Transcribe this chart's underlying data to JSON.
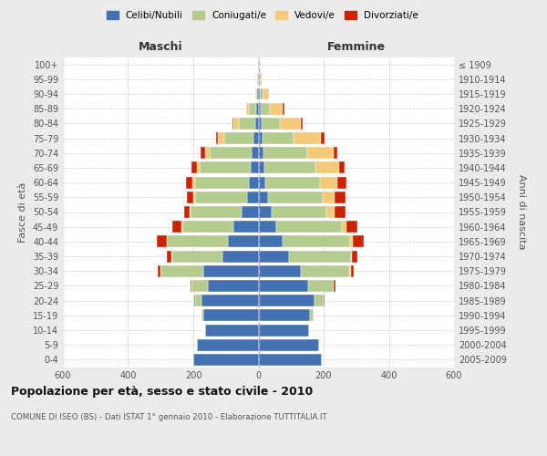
{
  "age_groups": [
    "0-4",
    "5-9",
    "10-14",
    "15-19",
    "20-24",
    "25-29",
    "30-34",
    "35-39",
    "40-44",
    "45-49",
    "50-54",
    "55-59",
    "60-64",
    "65-69",
    "70-74",
    "75-79",
    "80-84",
    "85-89",
    "90-94",
    "95-99",
    "100+"
  ],
  "birth_years": [
    "2005-2009",
    "2000-2004",
    "1995-1999",
    "1990-1994",
    "1985-1989",
    "1980-1984",
    "1975-1979",
    "1970-1974",
    "1965-1969",
    "1960-1964",
    "1955-1959",
    "1950-1954",
    "1945-1949",
    "1940-1944",
    "1935-1939",
    "1930-1934",
    "1925-1929",
    "1920-1924",
    "1915-1919",
    "1910-1914",
    "≤ 1909"
  ],
  "male": {
    "celibi": [
      200,
      190,
      165,
      170,
      175,
      155,
      170,
      110,
      95,
      78,
      52,
      35,
      30,
      25,
      20,
      15,
      10,
      8,
      3,
      2,
      1
    ],
    "coniugati": [
      0,
      0,
      0,
      5,
      20,
      50,
      130,
      155,
      185,
      155,
      155,
      160,
      165,
      155,
      130,
      90,
      50,
      20,
      5,
      2,
      0
    ],
    "vedovi": [
      0,
      0,
      0,
      0,
      0,
      0,
      0,
      1,
      1,
      2,
      3,
      5,
      8,
      10,
      15,
      20,
      18,
      10,
      2,
      0,
      0
    ],
    "divorziati": [
      0,
      0,
      0,
      0,
      2,
      2,
      8,
      15,
      30,
      28,
      18,
      20,
      20,
      15,
      12,
      5,
      2,
      0,
      0,
      0,
      0
    ]
  },
  "female": {
    "nubili": [
      195,
      185,
      155,
      158,
      172,
      152,
      130,
      95,
      75,
      55,
      40,
      28,
      22,
      18,
      15,
      12,
      10,
      8,
      4,
      2,
      1
    ],
    "coniugate": [
      0,
      0,
      0,
      10,
      28,
      80,
      148,
      188,
      205,
      200,
      168,
      168,
      168,
      158,
      135,
      95,
      55,
      28,
      10,
      3,
      0
    ],
    "vedove": [
      0,
      0,
      0,
      0,
      0,
      0,
      5,
      5,
      10,
      16,
      26,
      38,
      52,
      72,
      82,
      85,
      65,
      38,
      18,
      6,
      1
    ],
    "divorziate": [
      0,
      0,
      0,
      0,
      2,
      5,
      8,
      15,
      32,
      32,
      32,
      32,
      28,
      15,
      10,
      10,
      5,
      5,
      0,
      0,
      0
    ]
  },
  "colors": {
    "celibi": "#4472b0",
    "coniugati": "#b5cc8e",
    "vedovi": "#f5c97a",
    "divorziati": "#cc2200"
  },
  "title": "Popolazione per età, sesso e stato civile - 2010",
  "subtitle": "COMUNE DI ISEO (BS) - Dati ISTAT 1° gennaio 2010 - Elaborazione TUTTITALIA.IT",
  "xlabel_left": "Maschi",
  "xlabel_right": "Femmine",
  "ylabel_left": "Fasce di età",
  "ylabel_right": "Anni di nascita",
  "xlim": 600,
  "background_color": "#ebebeb",
  "plot_background": "#ffffff",
  "legend_labels": [
    "Celibi/Nubili",
    "Coniugati/e",
    "Vedovi/e",
    "Divorziati/e"
  ]
}
